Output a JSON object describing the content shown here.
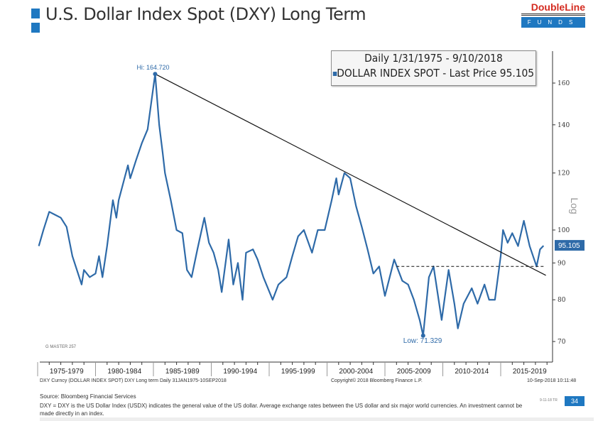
{
  "title": "U.S. Dollar Index Spot (DXY) Long Term",
  "logo": {
    "line1": "DoubleLine",
    "line2": "FUNDS"
  },
  "legend": {
    "line1": "Daily 1/31/1975 - 9/10/2018",
    "line2": "DOLLAR INDEX SPOT - Last Price 95.105"
  },
  "chart_data": {
    "type": "line",
    "title": "Daily 1/31/1975 - 9/10/2018",
    "series": [
      {
        "name": "DOLLAR INDEX SPOT",
        "color": "#2e6aa8",
        "x": [
          1975.1,
          1975.5,
          1976,
          1976.5,
          1977,
          1977.5,
          1978,
          1978.8,
          1979,
          1979.5,
          1980,
          1980.3,
          1980.6,
          1981,
          1981.5,
          1981.8,
          1982,
          1982.8,
          1983,
          1983.5,
          1984,
          1984.5,
          1985.15,
          1985.5,
          1985.8,
          1986,
          1986.5,
          1987,
          1987.5,
          1987.9,
          1988.3,
          1988.8,
          1989.4,
          1989.8,
          1990.2,
          1990.6,
          1990.9,
          1991.5,
          1991.9,
          1992.3,
          1992.7,
          1993,
          1993.6,
          1994,
          1994.5,
          1995.3,
          1995.8,
          1996.5,
          1997,
          1997.5,
          1998,
          1998.7,
          1999.2,
          1999.8,
          2000.4,
          2000.8,
          2001,
          2001.5,
          2002,
          2002.5,
          2003,
          2003.5,
          2004,
          2004.5,
          2005,
          2005.8,
          2006.5,
          2007,
          2007.5,
          2008,
          2008.3,
          2008.8,
          2009.2,
          2009.9,
          2010.5,
          2011,
          2011.3,
          2011.8,
          2012.5,
          2013,
          2013.6,
          2014,
          2014.5,
          2015,
          2015.2,
          2015.6,
          2016,
          2016.5,
          2017,
          2017.5,
          2018.1,
          2018.4,
          2018.7
        ],
        "values": [
          95,
          100,
          106,
          105,
          104,
          101,
          92,
          84,
          88,
          86,
          87,
          92,
          86,
          95,
          110,
          104,
          110,
          123,
          118,
          125,
          132,
          138,
          164.72,
          140,
          128,
          120,
          110,
          100,
          99,
          88,
          86,
          94,
          104,
          96,
          93,
          88,
          82,
          97,
          84,
          90,
          80,
          93,
          94,
          91,
          86,
          80,
          84,
          86,
          92,
          98,
          100,
          93,
          100,
          100,
          110,
          118,
          112,
          120,
          118,
          108,
          101,
          94,
          87,
          89,
          81,
          91,
          85,
          84,
          80,
          75,
          71.329,
          86,
          89,
          75,
          88,
          79,
          73,
          79,
          83,
          79,
          84,
          80,
          80,
          92,
          100,
          96,
          99,
          95,
          103,
          95,
          89,
          94,
          95.105
        ]
      }
    ],
    "annotations": {
      "high": "Hi: 164.720",
      "low": "Low: 71.329",
      "last": "95.105"
    },
    "trendline": {
      "from": [
        1985.15,
        164.72
      ],
      "to": [
        2018.9,
        86.5
      ]
    },
    "support_line": {
      "value": 89,
      "from": 2006,
      "to": 2018.8
    },
    "y_scale": "log",
    "ylabel": "Log",
    "ylim": [
      68,
      170
    ],
    "xlim": [
      1974.9,
      2019.4
    ],
    "yticks": [
      70,
      80,
      90,
      100,
      120,
      140,
      160
    ],
    "xtick_labels": [
      "1975-1979",
      "1980-1984",
      "1985-1989",
      "1990-1994",
      "1995-1999",
      "2000-2004",
      "2005-2009",
      "2010-2014",
      "2015-2019"
    ]
  },
  "chart_footer": {
    "left": "DXY Curncy (DOLLAR INDEX SPOT) DXY Long term  Daily 31JAN1975-10SEP2018",
    "center": "Copyright© 2018 Bloomberg Finance L.P.",
    "right": "10-Sep-2018 10:11:48",
    "gmaster": "G MASTER 257"
  },
  "source": "Source: Bloomberg Financial Services",
  "note": "DXY = DXY is the US Dollar Index (USDX) indicates the general value of the US dollar. Average exchange rates between the US dollar and six major world currencies. An investment cannot be made directly in an index.",
  "slide_code": "9-11-18 TR",
  "page_number": "34"
}
